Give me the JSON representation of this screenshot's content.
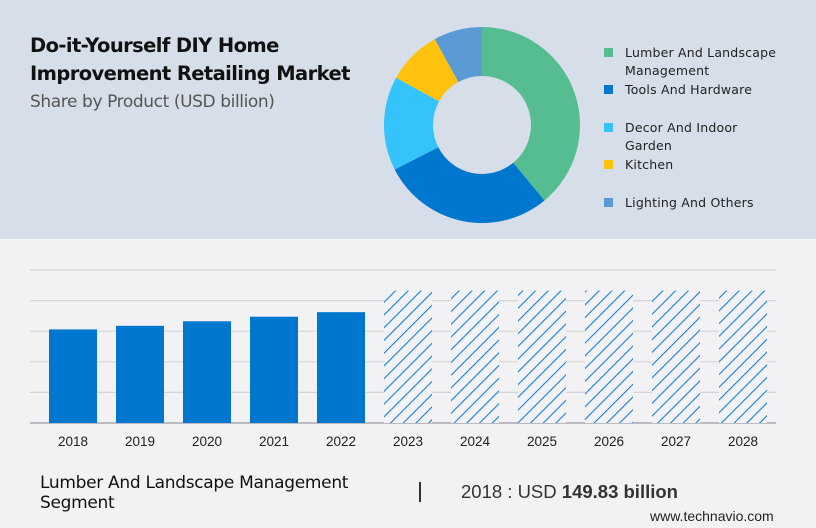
{
  "header": {
    "title_line1": "Do-it-Yourself DIY Home",
    "title_line2": "Improvement Retailing Market",
    "subtitle": "Share by Product (USD billion)"
  },
  "legend": [
    {
      "label": "Lumber And Landscape Management",
      "color": "#55bd90"
    },
    {
      "label": "Tools And Hardware",
      "color": "#0077cf"
    },
    {
      "label": "Decor And Indoor Garden",
      "color": "#35c3fb"
    },
    {
      "label": "Kitchen",
      "color": "#ffc20e"
    },
    {
      "label": "Lighting And Others",
      "color": "#5b9bd5"
    }
  ],
  "footer": {
    "segment": "Lumber And Landscape Management Segment",
    "separator": "|",
    "value_prefix": "2018 : USD ",
    "value_bold": "149.83 billion",
    "site": "www.technavio.com"
  },
  "chart_data": [
    {
      "type": "pie",
      "title": "Share by Product (USD billion)",
      "donut": true,
      "categories": [
        "Lumber And Landscape Management",
        "Tools And Hardware",
        "Decor And Indoor Garden",
        "Kitchen",
        "Lighting And Others"
      ],
      "values": [
        39,
        28.5,
        15.5,
        9,
        8
      ],
      "unit": "percent share (estimated)",
      "colors": [
        "#55bd90",
        "#0077cf",
        "#35c3fb",
        "#ffc20e",
        "#5b9bd5"
      ],
      "legend_position": "right"
    },
    {
      "type": "bar",
      "title": "Lumber And Landscape Management Segment",
      "categories": [
        "2018",
        "2019",
        "2020",
        "2021",
        "2022",
        "2023",
        "2024",
        "2025",
        "2026",
        "2027",
        "2028"
      ],
      "values": [
        149.83,
        155.6,
        162.9,
        170.2,
        177.5,
        null,
        null,
        null,
        null,
        null,
        null
      ],
      "forecast": [
        false,
        false,
        false,
        false,
        false,
        true,
        true,
        true,
        true,
        true,
        true
      ],
      "forecast_display_value": 212,
      "ylim": [
        0,
        245
      ],
      "grid": true,
      "gridline_count": 5,
      "bar_color": "#0077cf",
      "xlabel": "",
      "ylabel": ""
    }
  ]
}
